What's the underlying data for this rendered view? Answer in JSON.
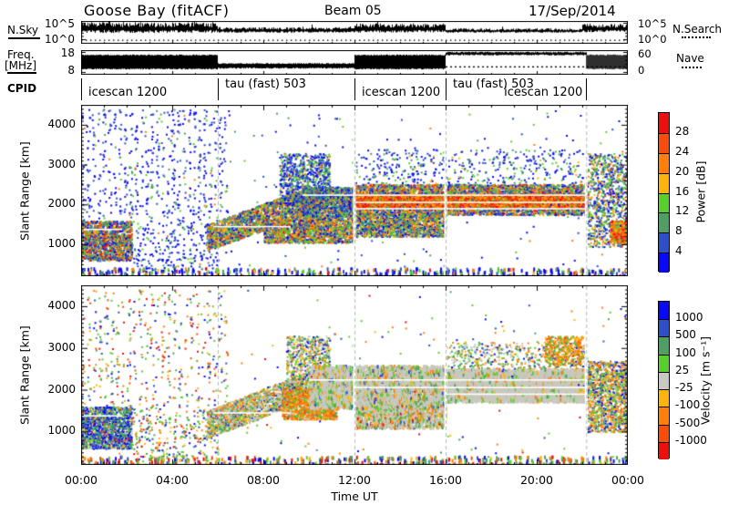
{
  "header": {
    "title": "Goose Bay (fitACF)",
    "beam": "Beam 05",
    "date": "17/Sep/2014"
  },
  "noise_panel": {
    "label": "N.Sky",
    "right_label": "N.Search",
    "yticks": [
      "10^5",
      "10^0"
    ],
    "sky_segments": [
      {
        "t": [
          0,
          6
        ],
        "y": 0.34,
        "amp": 0.22
      },
      {
        "t": [
          6,
          12
        ],
        "y": 0.42,
        "amp": 0.11
      },
      {
        "t": [
          12,
          16
        ],
        "y": 0.35,
        "amp": 0.19
      },
      {
        "t": [
          16,
          22
        ],
        "y": 0.44,
        "amp": 0.09
      },
      {
        "t": [
          22,
          24
        ],
        "y": 0.35,
        "amp": 0.17
      }
    ]
  },
  "freq_panel": {
    "label_line1": "Freq.",
    "label_line2": "[MHz]",
    "yticks": [
      "18",
      "8"
    ],
    "right_yticks": [
      "60",
      "0"
    ],
    "right_label": "Nave",
    "flim": [
      8,
      18
    ],
    "bands": [
      {
        "t": [
          0,
          6
        ],
        "f": [
          9.8,
          16.2
        ]
      },
      {
        "t": [
          6,
          12
        ],
        "f": [
          10.2,
          12.0
        ]
      },
      {
        "t": [
          12,
          16
        ],
        "f": [
          9.8,
          16.2
        ]
      },
      {
        "t": [
          16,
          22.17
        ],
        "f": [
          16.8,
          17.6
        ]
      },
      {
        "t": [
          22.17,
          24
        ],
        "f": [
          9.8,
          16.2
        ]
      }
    ],
    "nave_dotted_level": 13
  },
  "cpid": {
    "label": "CPID",
    "segments": [
      {
        "start": 0,
        "end": 6,
        "label": "icescan 1200",
        "row": 1,
        "label_pos": "in"
      },
      {
        "start": 6,
        "end": 12,
        "label": "tau (fast) 503",
        "row": 0,
        "label_pos": "in"
      },
      {
        "start": 12,
        "end": 16,
        "label": "icescan 1200",
        "row": 1,
        "label_pos": "in"
      },
      {
        "start": 16,
        "end": 22.17,
        "label": "tau (fast) 503",
        "row": 0,
        "label_pos": "in"
      },
      {
        "start": 22.17,
        "end": 24,
        "label": "icescan 1200",
        "row": 1,
        "label_pos": "before"
      }
    ]
  },
  "xaxis": {
    "label": "Time UT",
    "tick_hours": [
      0,
      4,
      8,
      12,
      16,
      20,
      24
    ],
    "ticks": [
      "00:00",
      "04:00",
      "08:00",
      "12:00",
      "16:00",
      "20:00",
      "00:00"
    ]
  },
  "palette": {
    "blue": "#0909f5",
    "steel": "#2e4fc8",
    "teal": "#4f9e64",
    "green": "#58cf2b",
    "grey": "#c9c9c1",
    "amber": "#fdb30f",
    "orange": "#ff7e0c",
    "vermilion": "#f64e0a",
    "red": "#ec0f0f"
  },
  "chart_data": [
    {
      "type": "scatter",
      "name": "power-rti",
      "ylabel": "Slant Range [km]",
      "ylim": [
        200,
        4500
      ],
      "yticks": [
        1000,
        2000,
        3000,
        4000
      ],
      "xlim_hours": [
        0,
        24
      ],
      "mode_boundaries_hours": [
        6,
        12,
        16,
        22.17
      ],
      "grid": false,
      "colorbar": {
        "title": "Power [dB]",
        "labels_top_to_bottom": [
          "28",
          "24",
          "20",
          "16",
          "12",
          "8",
          "4"
        ],
        "colors_top_to_bottom": [
          "#ec0f0f",
          "#f64e0a",
          "#ff7e0c",
          "#fdb30f",
          "#58cf2b",
          "#4f9e64",
          "#2e4fc8",
          "#0909f5"
        ]
      },
      "bands": [
        {
          "name": "early-low-scatter",
          "t": [
            0,
            2.2
          ],
          "r": [
            600,
            1600
          ],
          "n": 1500,
          "mix": {
            "steel": 3,
            "blue": 2,
            "teal": 2,
            "green": 2,
            "amber": 1.5,
            "orange": 1.5,
            "vermilion": 1,
            "red": 1
          }
        },
        {
          "name": "early-high-speckle",
          "t": [
            0,
            6.5
          ],
          "r": [
            1600,
            4400
          ],
          "n": 550,
          "streak": 28,
          "mix": {
            "blue": 5,
            "steel": 3,
            "teal": 1,
            "green": 0.6,
            "orange": 0.3
          }
        },
        {
          "name": "morning-sparse",
          "t": [
            2.2,
            6
          ],
          "r": [
            300,
            1600
          ],
          "n": 260,
          "mix": {
            "blue": 4,
            "steel": 2,
            "teal": 1,
            "green": 1,
            "orange": 0.4
          }
        },
        {
          "name": "rising-ground-scatter",
          "t": [
            5.5,
            9.7
          ],
          "rise": [
            [
              850,
              1500
            ],
            [
              1700,
              2400
            ]
          ],
          "n": 1900,
          "mix": {
            "green": 2,
            "teal": 2,
            "amber": 2,
            "orange": 1.5,
            "steel": 2,
            "blue": 1.2,
            "vermilion": 0.8,
            "red": 0.4
          }
        },
        {
          "name": "midday-high-blob",
          "t": [
            8.7,
            10.9
          ],
          "r": [
            2000,
            3300
          ],
          "n": 900,
          "mix": {
            "blue": 3,
            "steel": 3,
            "teal": 2,
            "green": 1.5,
            "amber": 0.7,
            "orange": 0.4
          }
        },
        {
          "name": "main-band-morning",
          "t": [
            9.7,
            12
          ],
          "r": [
            1650,
            2450
          ],
          "n": 1500,
          "mix": {
            "steel": 3,
            "blue": 2,
            "teal": 2,
            "green": 2,
            "amber": 1,
            "orange": 0.8,
            "vermilion": 0.5
          }
        },
        {
          "name": "main-band",
          "t": [
            12,
            22.2
          ],
          "r": [
            1750,
            2520
          ],
          "n": 5200,
          "mix": {
            "steel": 2.5,
            "blue": 1.5,
            "teal": 2,
            "green": 2,
            "amber": 1.5,
            "orange": 1.5,
            "vermilion": 1,
            "red": 0.7
          }
        },
        {
          "name": "main-band-core",
          "t": [
            12,
            22.2
          ],
          "r": [
            1950,
            2260
          ],
          "n": 2700,
          "mix": {
            "orange": 3,
            "vermilion": 3,
            "red": 2.5,
            "amber": 2,
            "green": 1
          }
        },
        {
          "name": "lower-band",
          "t": [
            8,
            12
          ],
          "r": [
            1050,
            1650
          ],
          "n": 1700,
          "mix": {
            "steel": 2,
            "blue": 1.5,
            "teal": 2,
            "green": 2,
            "amber": 1.8,
            "orange": 1.5,
            "vermilion": 0.8,
            "red": 0.4
          }
        },
        {
          "name": "lower-band-midday",
          "t": [
            12,
            16
          ],
          "r": [
            1200,
            1780
          ],
          "n": 1500,
          "mix": {
            "green": 2,
            "teal": 2,
            "amber": 1.5,
            "orange": 1.2,
            "steel": 2,
            "blue": 1.5,
            "vermilion": 0.6
          }
        },
        {
          "name": "upper-sparse-afternoon",
          "t": [
            12,
            22
          ],
          "r": [
            2550,
            3400
          ],
          "n": 420,
          "mix": {
            "blue": 3,
            "steel": 2,
            "teal": 1.5,
            "green": 1,
            "amber": 0.5
          }
        },
        {
          "name": "late-mixed",
          "t": [
            22.2,
            24
          ],
          "r": [
            950,
            3300
          ],
          "n": 900,
          "mix": {
            "steel": 2,
            "blue": 2,
            "teal": 2,
            "green": 2,
            "amber": 1,
            "orange": 1,
            "vermilion": 0.6
          }
        },
        {
          "name": "late-low-strong",
          "t": [
            23.2,
            24
          ],
          "r": [
            1050,
            1600
          ],
          "n": 450,
          "mix": {
            "orange": 2.5,
            "vermilion": 2,
            "red": 1.5,
            "amber": 1.5,
            "green": 1,
            "teal": 1
          }
        },
        {
          "name": "near-range-speckle",
          "t": [
            0,
            24
          ],
          "r": [
            120,
            430
          ],
          "n": 750,
          "ph": 4,
          "streak": 90,
          "mix": {
            "blue": 3,
            "steel": 2,
            "green": 1.5,
            "teal": 1,
            "orange": 0.8,
            "red": 0.5,
            "amber": 0.5
          }
        },
        {
          "name": "background-speckle",
          "t": [
            0,
            24
          ],
          "r": [
            400,
            4400
          ],
          "n": 260,
          "mix": {
            "blue": 3,
            "steel": 1.5,
            "teal": 1,
            "green": 0.8,
            "orange": 0.3
          }
        }
      ],
      "gap_lines": [
        {
          "t": [
            9.7,
            22.2
          ],
          "r": 2240
        },
        {
          "t": [
            12,
            22.2
          ],
          "r": 2060
        },
        {
          "t": [
            12,
            22.2
          ],
          "r": 1900
        },
        {
          "t": [
            0,
            1.8
          ],
          "r": 1380
        },
        {
          "t": [
            5.8,
            9.2
          ],
          "r": 1450
        }
      ]
    },
    {
      "type": "scatter",
      "name": "velocity-rti",
      "ylabel": "Slant Range [km]",
      "ylim": [
        200,
        4500
      ],
      "yticks": [
        1000,
        2000,
        3000,
        4000
      ],
      "xlim_hours": [
        0,
        24
      ],
      "mode_boundaries_hours": [
        6,
        12,
        16,
        22.17
      ],
      "grid": false,
      "colorbar": {
        "title": "Velocity [m s⁻¹]",
        "labels_top_to_bottom": [
          "1000",
          "500",
          "100",
          "25",
          "-25",
          "-100",
          "-500",
          "-1000"
        ],
        "colors_top_to_bottom": [
          "#0909f5",
          "#2e4fc8",
          "#4f9e64",
          "#58cf2b",
          "#c9c9c1",
          "#fdb30f",
          "#ff7e0c",
          "#f64e0a",
          "#ec0f0f"
        ]
      },
      "bands": [
        {
          "name": "early-low-scatter",
          "t": [
            0,
            2.2
          ],
          "r": [
            600,
            1600
          ],
          "n": 1500,
          "mix": {
            "blue": 3,
            "steel": 3,
            "teal": 2.5,
            "green": 2,
            "grey": 1,
            "amber": 0.5,
            "orange": 0.5,
            "red": 0.3
          }
        },
        {
          "name": "early-high-speckle",
          "t": [
            0,
            6.5
          ],
          "r": [
            1600,
            4400
          ],
          "n": 420,
          "streak": 26,
          "mix": {
            "red": 1,
            "vermilion": 1,
            "orange": 1,
            "amber": 1,
            "blue": 1.2,
            "steel": 1,
            "teal": 1,
            "green": 1.2
          }
        },
        {
          "name": "morning-sparse",
          "t": [
            2.2,
            6
          ],
          "r": [
            300,
            1600
          ],
          "n": 280,
          "mix": {
            "green": 2,
            "teal": 1.5,
            "blue": 1,
            "steel": 1,
            "orange": 1,
            "amber": 1,
            "red": 0.6
          }
        },
        {
          "name": "rising-ground-scatter",
          "t": [
            5.5,
            9.7
          ],
          "rise": [
            [
              850,
              1500
            ],
            [
              1700,
              2400
            ]
          ],
          "n": 1800,
          "mix": {
            "grey": 3.5,
            "green": 1.5,
            "teal": 1.5,
            "amber": 1.2,
            "orange": 1.2,
            "steel": 0.8,
            "vermilion": 0.5
          }
        },
        {
          "name": "morning-flow-blob",
          "t": [
            8.8,
            11.2
          ],
          "r": [
            1300,
            2050
          ],
          "n": 1500,
          "mix": {
            "orange": 4,
            "amber": 2,
            "vermilion": 1.5,
            "green": 1.5,
            "teal": 1,
            "grey": 1.5,
            "red": 0.5
          }
        },
        {
          "name": "morning-high-blob",
          "t": [
            9,
            10.9
          ],
          "r": [
            2050,
            3300
          ],
          "n": 650,
          "mix": {
            "green": 2,
            "teal": 2,
            "grey": 2,
            "orange": 1.5,
            "amber": 1.2,
            "steel": 1,
            "blue": 0.7
          }
        },
        {
          "name": "ground-scatter-band",
          "t": [
            10,
            16
          ],
          "r": [
            1600,
            2600
          ],
          "n": 3800,
          "ph": 4,
          "mix": {
            "grey": 8,
            "green": 1,
            "teal": 0.8,
            "amber": 0.8,
            "orange": 0.8,
            "steel": 0.4
          }
        },
        {
          "name": "lower-band-midday",
          "t": [
            12,
            16
          ],
          "r": [
            1100,
            1650
          ],
          "n": 1300,
          "ph": 3,
          "mix": {
            "grey": 5,
            "green": 1,
            "amber": 1,
            "orange": 1,
            "teal": 0.8,
            "steel": 0.4,
            "red": 0.3
          }
        },
        {
          "name": "ground-scatter-block",
          "t": [
            16,
            22.2
          ],
          "r": [
            1750,
            2520
          ],
          "n": 4200,
          "ph": 4,
          "mix": {
            "grey": 12,
            "green": 1,
            "amber": 0.8,
            "orange": 0.5,
            "teal": 0.5
          }
        },
        {
          "name": "block-upper-fringe",
          "t": [
            16,
            22.2
          ],
          "r": [
            2520,
            3150
          ],
          "n": 480,
          "mix": {
            "green": 2,
            "teal": 1.5,
            "grey": 2,
            "orange": 1.5,
            "amber": 1.2,
            "blue": 0.7,
            "steel": 0.7
          }
        },
        {
          "name": "evening-orange-patch",
          "t": [
            20.3,
            22
          ],
          "r": [
            2600,
            3300
          ],
          "n": 400,
          "mix": {
            "orange": 3,
            "amber": 2,
            "green": 1.5,
            "vermilion": 1,
            "teal": 1
          }
        },
        {
          "name": "late-mixed",
          "t": [
            22.2,
            24
          ],
          "r": [
            1000,
            2700
          ],
          "n": 1400,
          "mix": {
            "green": 2.5,
            "orange": 2,
            "amber": 1.8,
            "grey": 1.5,
            "teal": 1.5,
            "steel": 1,
            "blue": 0.8,
            "vermilion": 0.8
          }
        },
        {
          "name": "near-range-speckle",
          "t": [
            0,
            24
          ],
          "r": [
            120,
            430
          ],
          "n": 800,
          "ph": 4,
          "streak": 90,
          "mix": {
            "green": 2,
            "teal": 1.5,
            "blue": 1.5,
            "steel": 1,
            "orange": 1.5,
            "red": 1.2,
            "amber": 1,
            "vermilion": 0.8
          }
        },
        {
          "name": "background-speckle",
          "t": [
            0,
            24
          ],
          "r": [
            400,
            4400
          ],
          "n": 220,
          "mix": {
            "green": 1.5,
            "teal": 1,
            "blue": 1,
            "steel": 1,
            "orange": 1,
            "amber": 0.8,
            "red": 0.6
          }
        }
      ],
      "gap_lines": [
        {
          "t": [
            10,
            22.2
          ],
          "r": 2240
        },
        {
          "t": [
            12,
            22.2
          ],
          "r": 2060
        },
        {
          "t": [
            16,
            22.2
          ],
          "r": 1900
        },
        {
          "t": [
            0,
            1.8
          ],
          "r": 1380
        },
        {
          "t": [
            5.8,
            9.2
          ],
          "r": 1450
        }
      ]
    }
  ]
}
